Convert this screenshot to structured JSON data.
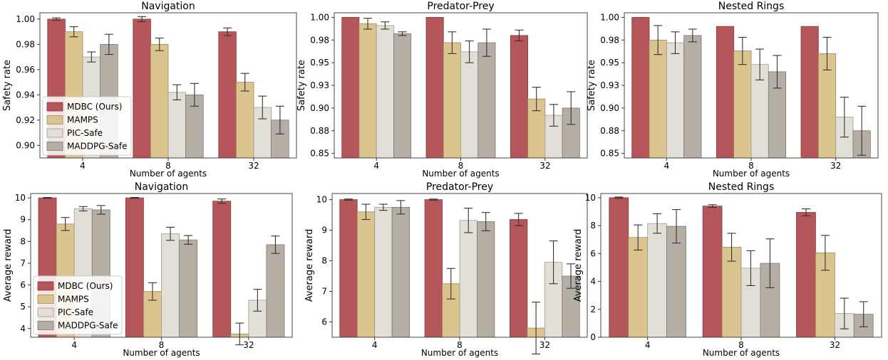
{
  "legend": {
    "entries": [
      "MDBC (Ours)",
      "MAMPS",
      "PIC-Safe",
      "MADDPG-Safe"
    ],
    "colors": [
      "#b5565a",
      "#dcc48f",
      "#e2e0d6",
      "#b5aea5"
    ]
  },
  "chart_data": [
    {
      "type": "bar",
      "title": "Navigation",
      "xlabel": "Number of agents",
      "ylabel": "Safety rate",
      "categories": [
        "4",
        "8",
        "32"
      ],
      "ylim": [
        0.89,
        1.005
      ],
      "yticks": [
        0.9,
        0.92,
        0.94,
        0.96,
        0.98,
        1.0
      ],
      "yticklabels": [
        "0.90",
        "0.92",
        "0.94",
        "0.96",
        "0.98",
        "1.00"
      ],
      "legend_position": "lower-left",
      "series": [
        {
          "name": "MDBC (Ours)",
          "values": [
            1.0,
            1.0,
            0.99
          ],
          "errors": [
            0.001,
            0.002,
            0.003
          ]
        },
        {
          "name": "MAMPS",
          "values": [
            0.99,
            0.98,
            0.95
          ],
          "errors": [
            0.004,
            0.005,
            0.007
          ]
        },
        {
          "name": "PIC-Safe",
          "values": [
            0.97,
            0.942,
            0.93
          ],
          "errors": [
            0.004,
            0.006,
            0.009
          ]
        },
        {
          "name": "MADDPG-Safe",
          "values": [
            0.98,
            0.94,
            0.92
          ],
          "errors": [
            0.008,
            0.009,
            0.011
          ]
        }
      ]
    },
    {
      "type": "bar",
      "title": "Predator-Prey",
      "xlabel": "Number of agents",
      "ylabel": "Safety rate",
      "categories": [
        "4",
        "8",
        "32"
      ],
      "ylim": [
        0.845,
        1.005
      ],
      "yticks": [
        0.85,
        0.875,
        0.9,
        0.925,
        0.95,
        0.975,
        1.0
      ],
      "yticklabels": [
        "0.85",
        "0.88",
        "0.90",
        "0.93",
        "0.95",
        "0.98",
        "1.00"
      ],
      "series": [
        {
          "name": "MDBC (Ours)",
          "values": [
            1.0,
            1.0,
            0.98
          ],
          "errors": [
            0.0,
            0.0,
            0.006
          ]
        },
        {
          "name": "MAMPS",
          "values": [
            0.993,
            0.972,
            0.91
          ],
          "errors": [
            0.006,
            0.012,
            0.013
          ]
        },
        {
          "name": "PIC-Safe",
          "values": [
            0.991,
            0.962,
            0.892
          ],
          "errors": [
            0.004,
            0.012,
            0.012
          ]
        },
        {
          "name": "MADDPG-Safe",
          "values": [
            0.982,
            0.972,
            0.9
          ],
          "errors": [
            0.002,
            0.015,
            0.018
          ]
        }
      ]
    },
    {
      "type": "bar",
      "title": "Nested Rings",
      "xlabel": "Number of agents",
      "ylabel": "Safety rate",
      "categories": [
        "4",
        "8",
        "32"
      ],
      "ylim": [
        0.845,
        1.005
      ],
      "yticks": [
        0.85,
        0.875,
        0.9,
        0.925,
        0.95,
        0.975,
        1.0
      ],
      "yticklabels": [
        "0.85",
        "0.88",
        "0.90",
        "0.93",
        "0.95",
        "0.98",
        "1.00"
      ],
      "series": [
        {
          "name": "MDBC (Ours)",
          "values": [
            1.0,
            0.99,
            0.99
          ],
          "errors": [
            0.0,
            0.0,
            0.0
          ]
        },
        {
          "name": "MAMPS",
          "values": [
            0.975,
            0.963,
            0.96
          ],
          "errors": [
            0.016,
            0.015,
            0.018
          ]
        },
        {
          "name": "PIC-Safe",
          "values": [
            0.972,
            0.948,
            0.89
          ],
          "errors": [
            0.012,
            0.017,
            0.022
          ]
        },
        {
          "name": "MADDPG-Safe",
          "values": [
            0.98,
            0.94,
            0.875
          ],
          "errors": [
            0.007,
            0.018,
            0.027
          ]
        }
      ]
    },
    {
      "type": "bar",
      "title": "Navigation",
      "xlabel": "Number of agents",
      "ylabel": "Average reward",
      "categories": [
        "4",
        "8",
        "32"
      ],
      "ylim": [
        3.6,
        10.2
      ],
      "yticks": [
        4,
        5,
        6,
        7,
        8,
        9,
        10
      ],
      "yticklabels": [
        "4",
        "5",
        "6",
        "7",
        "8",
        "9",
        "10"
      ],
      "legend_position": "lower-left",
      "series": [
        {
          "name": "MDBC (Ours)",
          "values": [
            10.0,
            10.0,
            9.85
          ],
          "errors": [
            0.02,
            0.02,
            0.1
          ]
        },
        {
          "name": "MAMPS",
          "values": [
            8.8,
            5.7,
            3.75
          ],
          "errors": [
            0.3,
            0.4,
            0.5
          ]
        },
        {
          "name": "PIC-Safe",
          "values": [
            9.5,
            8.35,
            5.3
          ],
          "errors": [
            0.1,
            0.3,
            0.5
          ]
        },
        {
          "name": "MADDPG-Safe",
          "values": [
            9.45,
            8.07,
            7.85
          ],
          "errors": [
            0.2,
            0.2,
            0.4
          ]
        }
      ]
    },
    {
      "type": "bar",
      "title": "Predator-Prey",
      "xlabel": "Number of agents",
      "ylabel": "Average reward",
      "categories": [
        "4",
        "8",
        "32"
      ],
      "ylim": [
        5.5,
        10.2
      ],
      "yticks": [
        6,
        7,
        8,
        9,
        10
      ],
      "yticklabels": [
        "6",
        "7",
        "8",
        "9",
        "10"
      ],
      "series": [
        {
          "name": "MDBC (Ours)",
          "values": [
            10.0,
            10.0,
            9.35
          ],
          "errors": [
            0.02,
            0.02,
            0.2
          ]
        },
        {
          "name": "MAMPS",
          "values": [
            9.6,
            7.25,
            5.8
          ],
          "errors": [
            0.25,
            0.5,
            0.85
          ]
        },
        {
          "name": "PIC-Safe",
          "values": [
            9.75,
            9.32,
            7.95
          ],
          "errors": [
            0.1,
            0.4,
            0.7
          ]
        },
        {
          "name": "MADDPG-Safe",
          "values": [
            9.75,
            9.28,
            7.5
          ],
          "errors": [
            0.22,
            0.3,
            0.4
          ]
        }
      ]
    },
    {
      "type": "bar",
      "title": "Nested Rings",
      "xlabel": "Number of agents",
      "ylabel": "Average reward",
      "categories": [
        "4",
        "8",
        "32"
      ],
      "ylim": [
        0,
        10.3
      ],
      "yticks": [
        0,
        2,
        4,
        6,
        8,
        10
      ],
      "yticklabels": [
        "0",
        "2",
        "4",
        "6",
        "8",
        "10"
      ],
      "series": [
        {
          "name": "MDBC (Ours)",
          "values": [
            10.0,
            9.4,
            8.95
          ],
          "errors": [
            0.05,
            0.1,
            0.25
          ]
        },
        {
          "name": "MAMPS",
          "values": [
            7.15,
            6.45,
            6.05
          ],
          "errors": [
            0.9,
            1.0,
            1.25
          ]
        },
        {
          "name": "PIC-Safe",
          "values": [
            8.15,
            4.95,
            1.7
          ],
          "errors": [
            0.7,
            1.25,
            1.1
          ]
        },
        {
          "name": "MADDPG-Safe",
          "values": [
            7.95,
            5.3,
            1.65
          ],
          "errors": [
            1.2,
            1.75,
            0.9
          ]
        }
      ]
    }
  ]
}
